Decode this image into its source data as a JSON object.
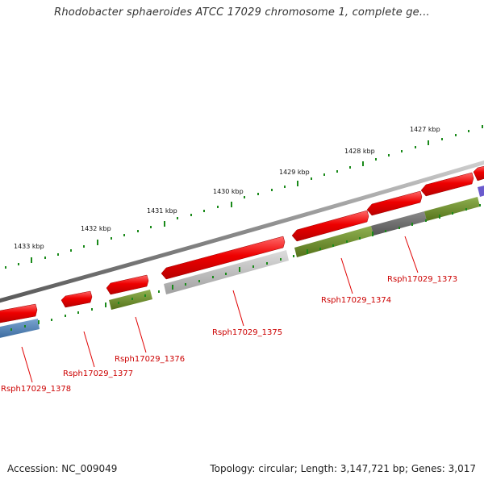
{
  "title": "Rhodobacter sphaeroides ATCC 17029 chromosome 1, complete ge...",
  "footer": {
    "accession_label": "Accession:",
    "accession": "NC_009049",
    "topology_label": "Topology:",
    "topology": "circular",
    "length_label": "Length:",
    "length": "3,147,721 bp",
    "genes_label": "Genes:",
    "genes": "3,017"
  },
  "ruler": {
    "unit": "kbp",
    "labels": [
      "1427 kbp",
      "1428 kbp",
      "1429 kbp",
      "1430 kbp",
      "1431 kbp",
      "1432 kbp",
      "1433 kbp"
    ]
  },
  "genes": [
    {
      "locus": "Rsph17029_1373",
      "strand": "-",
      "color": "#ee0000"
    },
    {
      "locus": "Rsph17029_1374",
      "strand": "-",
      "color": "#ee0000"
    },
    {
      "locus": "Rsph17029_1375",
      "strand": "-",
      "color": "#ee0000"
    },
    {
      "locus": "Rsph17029_1376",
      "strand": "-",
      "color": "#ee0000"
    },
    {
      "locus": "Rsph17029_1377",
      "strand": "-",
      "color": "#ee0000"
    },
    {
      "locus": "Rsph17029_1378",
      "strand": "+",
      "color": "#ee0000"
    }
  ],
  "colors": {
    "gene": "#ee0000",
    "label": "#cc0000",
    "backbone": "#888888",
    "ruler_tick": "#1a8a1a",
    "category_green": "#6b8e23",
    "category_gray": "#aaaaaa",
    "category_dark": "#666666",
    "category_blue": "#4a7fb5",
    "category_purple": "#6a5acd"
  }
}
